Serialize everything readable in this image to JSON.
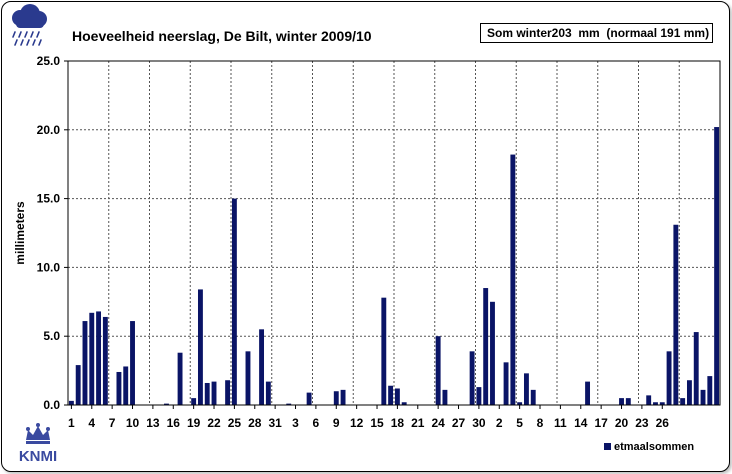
{
  "chart_data": {
    "type": "bar",
    "title": "Hoeveelheid neerslag, De Bilt, winter 2009/10",
    "ylabel": "millimeters",
    "xlabel": "",
    "ylim": [
      0,
      25
    ],
    "y_ticks": [
      "0.0",
      "5.0",
      "10.0",
      "15.0",
      "20.0",
      "25.0"
    ],
    "x_tick_labels": [
      "1",
      "4",
      "7",
      "10",
      "13",
      "16",
      "19",
      "22",
      "25",
      "28",
      "31",
      "3",
      "6",
      "9",
      "12",
      "15",
      "18",
      "21",
      "24",
      "27",
      "30",
      "2",
      "5",
      "8",
      "11",
      "14",
      "17",
      "20",
      "23",
      "26"
    ],
    "x_tick_every": 3,
    "grid": true,
    "legend_position": "bottom-right",
    "color": "#0a1466",
    "series": [
      {
        "name": "etmaalsommen",
        "values": [
          0.3,
          2.9,
          6.1,
          6.7,
          6.8,
          6.4,
          0.0,
          2.4,
          2.8,
          6.1,
          0.0,
          0.0,
          0.0,
          0.0,
          0.1,
          0.0,
          3.8,
          0.0,
          0.5,
          8.4,
          1.6,
          1.7,
          0.0,
          1.8,
          15.0,
          0.0,
          3.9,
          0.0,
          5.5,
          1.7,
          0.0,
          0.0,
          0.1,
          0.0,
          0.0,
          0.9,
          0.0,
          0.0,
          0.0,
          1.0,
          1.1,
          0.0,
          0.0,
          0.0,
          0.0,
          0.0,
          7.8,
          1.4,
          1.2,
          0.2,
          0.0,
          0.0,
          0.0,
          0.0,
          5.0,
          1.1,
          0.0,
          0.0,
          0.0,
          3.9,
          1.3,
          8.5,
          7.5,
          0.0,
          3.1,
          18.2,
          0.2,
          2.3,
          1.1,
          0.0,
          0.0,
          0.0,
          0.0,
          0.0,
          0.0,
          0.0,
          1.7,
          0.0,
          0.0,
          0.0,
          0.0,
          0.5,
          0.5,
          0.0,
          0.0,
          0.7,
          0.2,
          0.2,
          3.9,
          13.1,
          0.5,
          1.8,
          5.3,
          1.1,
          2.1,
          20.2
        ]
      }
    ]
  },
  "som_box": "Som winter203  mm  (normaal 191 mm)",
  "logo_text": "KNMI",
  "colors": {
    "bar": "#0a1466",
    "logo": "#3a4aa0"
  }
}
